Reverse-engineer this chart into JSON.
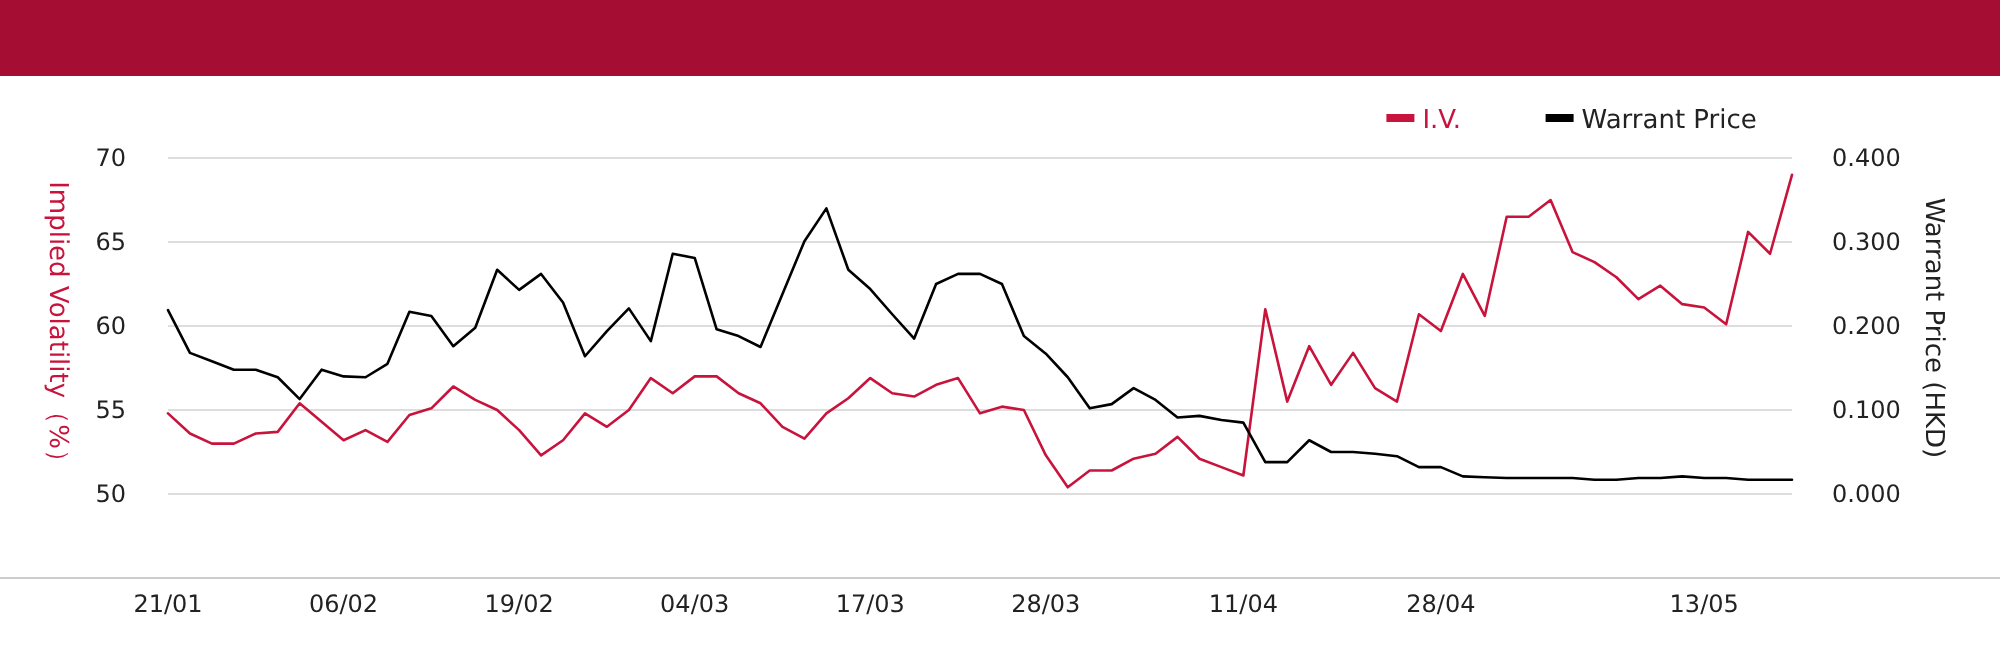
{
  "chart_data": {
    "type": "line",
    "categories": [
      "21/01",
      null,
      null,
      null,
      null,
      null,
      null,
      null,
      "06/02",
      null,
      null,
      null,
      null,
      null,
      null,
      null,
      "19/02",
      null,
      null,
      null,
      null,
      null,
      null,
      null,
      "04/03",
      null,
      null,
      null,
      null,
      null,
      null,
      null,
      "17/03",
      null,
      null,
      null,
      null,
      null,
      null,
      null,
      "28/03",
      null,
      null,
      null,
      null,
      null,
      null,
      null,
      null,
      "11/04",
      null,
      null,
      null,
      null,
      null,
      null,
      null,
      null,
      "28/04",
      null,
      null,
      null,
      null,
      null,
      null,
      null,
      null,
      null,
      null,
      null,
      "13/05",
      null,
      null,
      null,
      null
    ],
    "ylabel": "Implied Volatility（%）",
    "y2label": "Warrant Price (HKD)",
    "ylim": [
      45,
      70
    ],
    "yticks": [
      50,
      55,
      60,
      65,
      70
    ],
    "y2lim": [
      -0.1,
      0.4
    ],
    "y2ticks": [
      {
        "value": 0,
        "label": "0.000"
      },
      {
        "value": 0.1,
        "label": "0.100"
      },
      {
        "value": 0.2,
        "label": "0.200"
      },
      {
        "value": 0.3,
        "label": "0.300"
      },
      {
        "value": 0.4,
        "label": "0.400"
      }
    ],
    "grid": "y",
    "legend": "top right",
    "marker": "none",
    "line_style": "solid",
    "series": [
      {
        "name": "I.V.",
        "color": "#c8143c",
        "values": [
          54.8,
          53.6,
          53.0,
          53.0,
          53.6,
          53.7,
          55.4,
          54.3,
          53.2,
          53.8,
          53.1,
          54.7,
          55.1,
          56.4,
          55.6,
          55.0,
          53.8,
          52.3,
          53.2,
          54.8,
          54.0,
          55.0,
          56.9,
          56.0,
          57.0,
          57.0,
          56.0,
          55.4,
          54.0,
          53.3,
          54.8,
          55.7,
          56.9,
          56.0,
          55.8,
          56.5,
          56.9,
          54.8,
          55.2,
          55.0,
          52.3,
          50.4,
          51.4,
          51.4,
          52.1,
          52.4,
          53.4,
          52.1,
          51.6,
          51.1,
          61.0,
          55.5,
          58.8,
          56.5,
          58.4,
          56.3,
          55.5,
          60.7,
          59.7,
          63.1,
          60.6,
          66.5,
          66.5,
          67.5,
          64.4,
          63.8,
          62.9,
          61.6,
          62.4,
          61.3,
          61.1,
          60.1,
          65.6,
          64.3,
          69.0
        ]
      },
      {
        "name": "Warrant Price",
        "color": "#000000",
        "axis": "y2",
        "values": [
          0.219,
          0.168,
          0.158,
          0.148,
          0.148,
          0.139,
          0.113,
          0.148,
          0.14,
          0.139,
          0.155,
          0.217,
          0.212,
          0.176,
          0.198,
          0.267,
          0.243,
          0.262,
          0.228,
          0.164,
          0.194,
          0.221,
          0.182,
          0.286,
          0.281,
          0.196,
          0.188,
          0.175,
          0.238,
          0.301,
          0.34,
          0.267,
          0.244,
          0.214,
          0.185,
          0.25,
          0.262,
          0.262,
          0.25,
          0.188,
          0.167,
          0.139,
          0.102,
          0.107,
          0.126,
          0.112,
          0.091,
          0.093,
          0.088,
          0.085,
          0.038,
          0.038,
          0.064,
          0.05,
          0.05,
          0.048,
          0.045,
          0.032,
          0.032,
          0.021,
          0.02,
          0.019,
          0.019,
          0.019,
          0.019,
          0.017,
          0.017,
          0.019,
          0.019,
          0.021,
          0.019,
          0.019,
          0.017,
          0.017,
          0.017
        ]
      }
    ]
  }
}
